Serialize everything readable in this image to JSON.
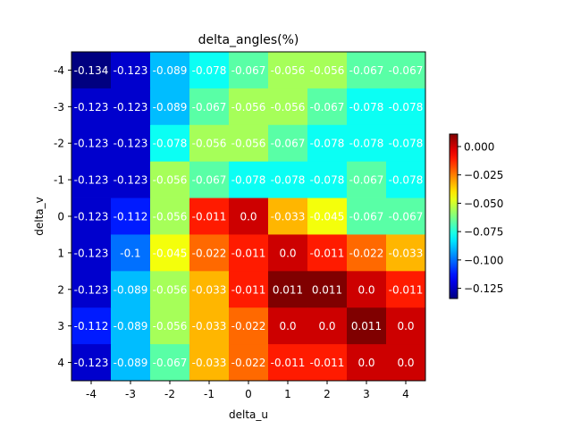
{
  "chart_data": {
    "type": "heatmap",
    "title": "delta_angles(%)",
    "xlabel": "delta_u",
    "ylabel": "delta_v",
    "x_categories": [
      "-4",
      "-3",
      "-2",
      "-1",
      "0",
      "1",
      "2",
      "3",
      "4"
    ],
    "y_categories": [
      "-4",
      "-3",
      "-2",
      "-1",
      "0",
      "1",
      "2",
      "3",
      "4"
    ],
    "values": [
      [
        -0.134,
        -0.123,
        -0.089,
        -0.078,
        -0.067,
        -0.056,
        -0.056,
        -0.067,
        -0.067
      ],
      [
        -0.123,
        -0.123,
        -0.089,
        -0.067,
        -0.056,
        -0.056,
        -0.067,
        -0.078,
        -0.078
      ],
      [
        -0.123,
        -0.123,
        -0.078,
        -0.056,
        -0.056,
        -0.067,
        -0.078,
        -0.078,
        -0.078
      ],
      [
        -0.123,
        -0.123,
        -0.056,
        -0.067,
        -0.078,
        -0.078,
        -0.078,
        -0.067,
        -0.078
      ],
      [
        -0.123,
        -0.112,
        -0.056,
        -0.011,
        0.0,
        -0.033,
        -0.045,
        -0.067,
        -0.067
      ],
      [
        -0.123,
        -0.1,
        -0.045,
        -0.022,
        -0.011,
        0.0,
        -0.011,
        -0.022,
        -0.033
      ],
      [
        -0.123,
        -0.089,
        -0.056,
        -0.033,
        -0.011,
        0.011,
        0.011,
        0.0,
        -0.011
      ],
      [
        -0.112,
        -0.089,
        -0.056,
        -0.033,
        -0.022,
        0.0,
        0.0,
        0.011,
        0.0
      ],
      [
        -0.123,
        -0.089,
        -0.067,
        -0.033,
        -0.022,
        -0.011,
        -0.011,
        0.0,
        0.0
      ]
    ],
    "value_labels": [
      [
        "-0.134",
        "-0.123",
        "-0.089",
        "-0.078",
        "-0.067",
        "-0.056",
        "-0.056",
        "-0.067",
        "-0.067"
      ],
      [
        "-0.123",
        "-0.123",
        "-0.089",
        "-0.067",
        "-0.056",
        "-0.056",
        "-0.067",
        "-0.078",
        "-0.078"
      ],
      [
        "-0.123",
        "-0.123",
        "-0.078",
        "-0.056",
        "-0.056",
        "-0.067",
        "-0.078",
        "-0.078",
        "-0.078"
      ],
      [
        "-0.123",
        "-0.123",
        "-0.056",
        "-0.067",
        "-0.078",
        "-0.078",
        "-0.078",
        "-0.067",
        "-0.078"
      ],
      [
        "-0.123",
        "-0.112",
        "-0.056",
        "-0.011",
        "0.0",
        "-0.033",
        "-0.045",
        "-0.067",
        "-0.067"
      ],
      [
        "-0.123",
        "-0.1",
        "-0.045",
        "-0.022",
        "-0.011",
        "0.0",
        "-0.011",
        "-0.022",
        "-0.033"
      ],
      [
        "-0.123",
        "-0.089",
        "-0.056",
        "-0.033",
        "-0.011",
        "0.011",
        "0.011",
        "0.0",
        "-0.011"
      ],
      [
        "-0.112",
        "-0.089",
        "-0.056",
        "-0.033",
        "-0.022",
        "0.0",
        "0.0",
        "0.011",
        "0.0"
      ],
      [
        "-0.123",
        "-0.089",
        "-0.067",
        "-0.033",
        "-0.022",
        "-0.011",
        "-0.011",
        "0.0",
        "0.0"
      ]
    ],
    "colormap": "jet",
    "vmin": -0.134,
    "vmax": 0.011,
    "colorbar": {
      "ticks": [
        -0.125,
        -0.1,
        -0.075,
        -0.05,
        -0.025,
        0.0
      ],
      "tick_labels": [
        "−0.125",
        "−0.100",
        "−0.075",
        "−0.050",
        "−0.025",
        "0.000"
      ],
      "placement": "right"
    },
    "grid": false
  }
}
